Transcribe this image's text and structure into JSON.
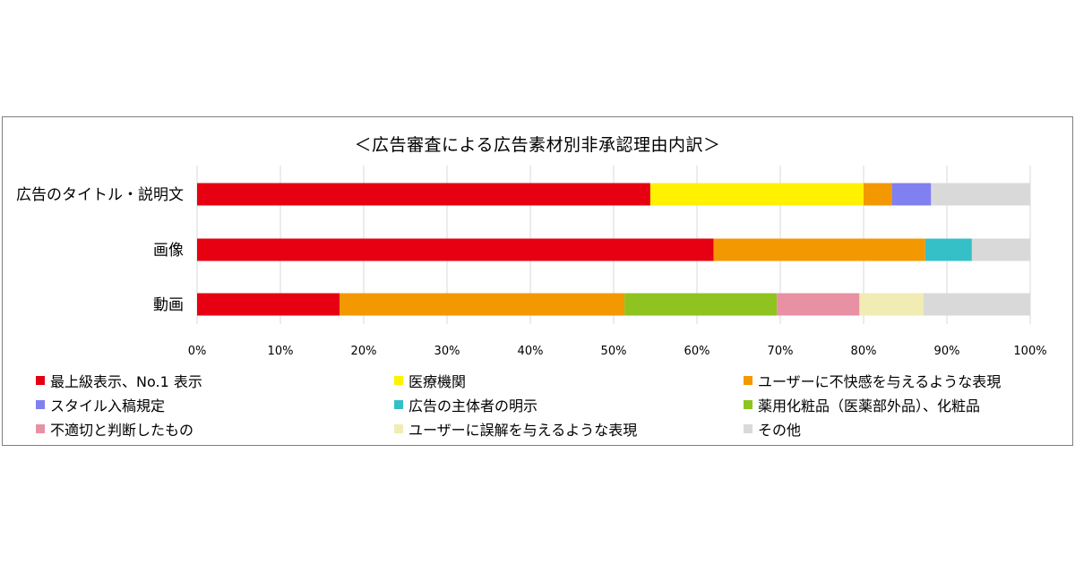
{
  "chart_data": {
    "type": "bar",
    "orientation": "horizontal",
    "stacked": "percent",
    "title": "＜広告審査による広告素材別非承認理由内訳＞",
    "categories": [
      "広告のタイトル・説明文",
      "画像",
      "動画"
    ],
    "xlim": [
      0,
      100
    ],
    "ticks": [
      "0%",
      "10%",
      "20%",
      "30%",
      "40%",
      "50%",
      "60%",
      "70%",
      "80%",
      "90%",
      "100%"
    ],
    "grid": true,
    "legend_position": "bottom",
    "series": [
      {
        "name": "最上級表示、No.1 表示",
        "color": "#e60012",
        "values": [
          54.4,
          62.0,
          17.1
        ]
      },
      {
        "name": "医療機関",
        "color": "#fff100",
        "values": [
          25.6,
          0,
          0
        ]
      },
      {
        "name": "ユーザーに不快感を与えるような表現",
        "color": "#f39800",
        "values": [
          3.4,
          25.4,
          34.2
        ]
      },
      {
        "name": "スタイル入稿規定",
        "color": "#8080f0",
        "values": [
          4.7,
          0,
          0
        ]
      },
      {
        "name": "広告の主体者の明示",
        "color": "#35c0c8",
        "values": [
          0,
          5.6,
          0
        ]
      },
      {
        "name": "薬用化粧品（医薬部外品）、化粧品",
        "color": "#8fc31f",
        "values": [
          0,
          0,
          18.3
        ]
      },
      {
        "name": "不適切と判断したもの",
        "color": "#e891a4",
        "values": [
          0,
          0,
          9.9
        ]
      },
      {
        "name": "ユーザーに誤解を与えるような表現",
        "color": "#f0ecb4",
        "values": [
          0,
          0,
          7.7
        ]
      },
      {
        "name": "その他",
        "color": "#d9d9d9",
        "values": [
          11.9,
          7.0,
          12.8
        ]
      }
    ]
  }
}
